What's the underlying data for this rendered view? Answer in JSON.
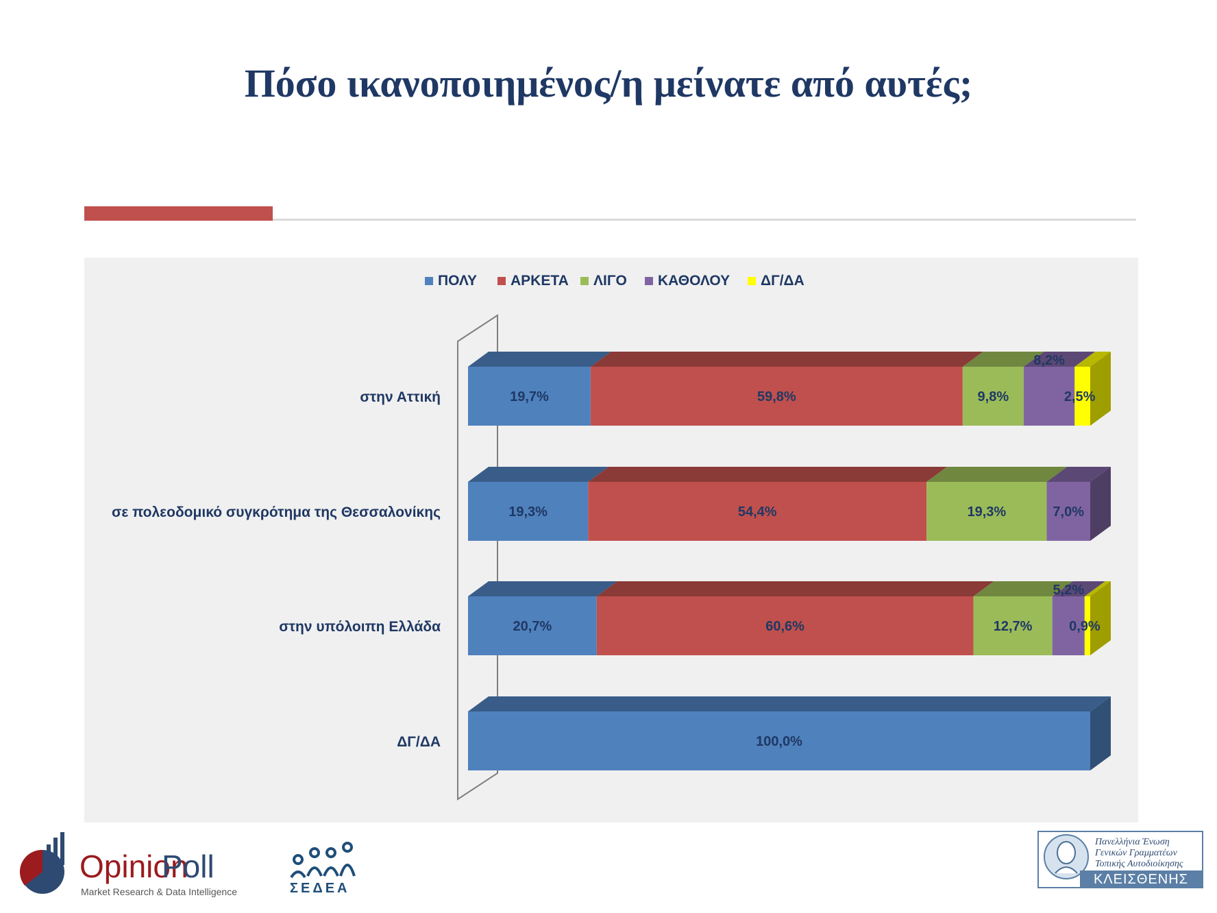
{
  "title": "Πόσο ικανοποιημένος/η μείνατε από αυτές;",
  "colors": {
    "title": "#1f3864",
    "accent": "#c0504d",
    "label": "#1f3864"
  },
  "chart_data": {
    "type": "bar",
    "orientation": "horizontal",
    "stacked": true,
    "three_d": true,
    "legend_position": "top",
    "categories": [
      "στην Αττική",
      "σε πολεοδομικό συγκρότημα της Θεσσαλονίκης",
      "στην υπόλοιπη Ελλάδα",
      "ΔΓ/ΔΑ"
    ],
    "series": [
      {
        "name": "ΠΟΛΥ",
        "color": "#4f81bd",
        "values": [
          19.7,
          19.3,
          20.7,
          100.0
        ],
        "labels": [
          "19,7%",
          "19,3%",
          "20,7%",
          "100,0%"
        ]
      },
      {
        "name": "ΑΡΚΕΤΑ",
        "color": "#c0504d",
        "values": [
          59.8,
          54.4,
          60.6,
          0
        ],
        "labels": [
          "59,8%",
          "54,4%",
          "60,6%",
          ""
        ]
      },
      {
        "name": "ΛΙΓΟ",
        "color": "#9bbb59",
        "values": [
          9.8,
          19.3,
          12.7,
          0
        ],
        "labels": [
          "9,8%",
          "19,3%",
          "12,7%",
          ""
        ]
      },
      {
        "name": "ΚΑΘΟΛΟΥ",
        "color": "#8064a2",
        "values": [
          8.2,
          7.0,
          5.2,
          0
        ],
        "labels": [
          "8,2%",
          "7,0%",
          "5,2%",
          ""
        ]
      },
      {
        "name": "ΔΓ/ΔΑ",
        "color": "#ffff00",
        "values": [
          2.5,
          0,
          0.9,
          0
        ],
        "labels": [
          "2,5%",
          "",
          "0,9%",
          ""
        ]
      }
    ]
  },
  "logos": {
    "opinionpoll": {
      "brand_opinion": "Opinion",
      "brand_poll": "Poll",
      "tagline": "Market Research & Data Intelligence"
    },
    "sedea": {
      "text": "ΣΕΔΕΑ"
    },
    "kleisthenis": {
      "line1": "Πανελλήνια Ένωση",
      "line2": "Γενικών Γραμματέων",
      "line3": "Τοπικής Αυτοδιοίκησης",
      "name": "ΚΛΕΙΣΘΕΝΗΣ"
    }
  }
}
